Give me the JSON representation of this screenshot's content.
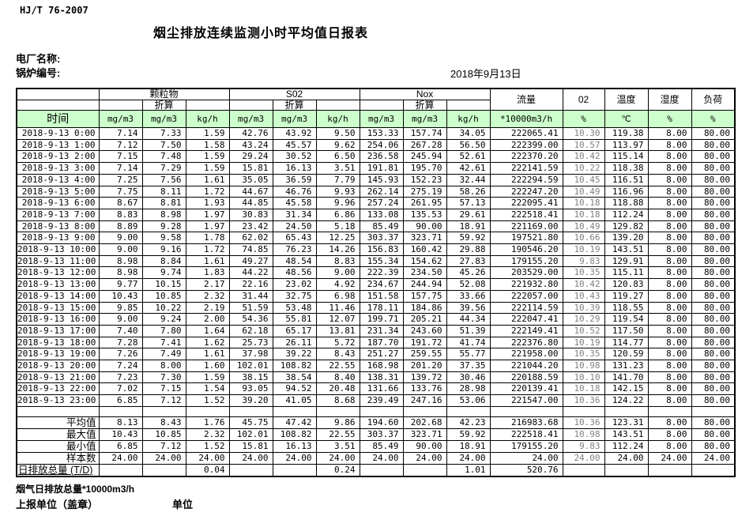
{
  "page": {
    "standard": "HJ/T  76-2007",
    "title": "烟尘排放连续监测小时平均值日报表",
    "plant_label": "电厂名称:",
    "boiler_label": "锅炉编号:",
    "date": "2018年9月13日"
  },
  "table": {
    "time_header": "时间",
    "converted_label": "折算",
    "groups": [
      "颗粒物",
      "S02",
      "Nox"
    ],
    "singles": [
      "流量",
      "02",
      "温度",
      "湿度",
      "负荷"
    ],
    "units": [
      "mg/m3",
      "mg/m3",
      "kg/h",
      "mg/m3",
      "mg/m3",
      "kg/h",
      "mg/m3",
      "mg/m3",
      "kg/h",
      "*10000m3/h",
      "%",
      "℃",
      "%",
      "%"
    ],
    "rows": [
      {
        "time": "2018-9-13 0:00",
        "values": [
          "7.14",
          "7.33",
          "1.59",
          "42.76",
          "43.92",
          "9.50",
          "153.33",
          "157.74",
          "34.05",
          "222065.41",
          "10.30",
          "119.38",
          "8.00",
          "80.00"
        ]
      },
      {
        "time": "2018-9-13 1:00",
        "values": [
          "7.12",
          "7.50",
          "1.58",
          "43.24",
          "45.57",
          "9.62",
          "254.06",
          "267.28",
          "56.50",
          "222399.00",
          "10.57",
          "113.97",
          "8.00",
          "80.00"
        ]
      },
      {
        "time": "2018-9-13 2:00",
        "values": [
          "7.15",
          "7.48",
          "1.59",
          "29.24",
          "30.52",
          "6.50",
          "236.58",
          "245.94",
          "52.61",
          "222370.20",
          "10.42",
          "115.14",
          "8.00",
          "80.00"
        ]
      },
      {
        "time": "2018-9-13 3:00",
        "values": [
          "7.14",
          "7.29",
          "1.59",
          "15.81",
          "16.13",
          "3.51",
          "191.81",
          "195.70",
          "42.61",
          "222141.59",
          "10.22",
          "118.38",
          "8.00",
          "80.00"
        ]
      },
      {
        "time": "2018-9-13 4:00",
        "values": [
          "7.25",
          "7.56",
          "1.61",
          "35.05",
          "36.59",
          "7.79",
          "145.93",
          "152.23",
          "32.44",
          "222294.59",
          "10.45",
          "116.51",
          "8.00",
          "80.00"
        ]
      },
      {
        "time": "2018-9-13 5:00",
        "values": [
          "7.75",
          "8.11",
          "1.72",
          "44.67",
          "46.76",
          "9.93",
          "262.14",
          "275.19",
          "58.26",
          "222247.20",
          "10.49",
          "116.96",
          "8.00",
          "80.00"
        ]
      },
      {
        "time": "2018-9-13 6:00",
        "values": [
          "8.67",
          "8.81",
          "1.93",
          "44.85",
          "45.58",
          "9.96",
          "257.24",
          "261.95",
          "57.13",
          "222095.41",
          "10.18",
          "118.88",
          "8.00",
          "80.00"
        ]
      },
      {
        "time": "2018-9-13 7:00",
        "values": [
          "8.83",
          "8.98",
          "1.97",
          "30.83",
          "31.34",
          "6.86",
          "133.08",
          "135.53",
          "29.61",
          "222518.41",
          "10.18",
          "112.24",
          "8.00",
          "80.00"
        ]
      },
      {
        "time": "2018-9-13 8:00",
        "values": [
          "8.89",
          "9.28",
          "1.97",
          "23.42",
          "24.50",
          "5.18",
          "85.49",
          "90.00",
          "18.91",
          "221169.00",
          "10.49",
          "129.82",
          "8.00",
          "80.00"
        ]
      },
      {
        "time": "2018-9-13 9:00",
        "values": [
          "9.00",
          "9.58",
          "1.78",
          "62.02",
          "65.43",
          "12.25",
          "303.37",
          "323.71",
          "59.92",
          "197521.80",
          "10.66",
          "139.20",
          "8.00",
          "80.00"
        ]
      },
      {
        "time": "2018-9-13 10:00",
        "values": [
          "9.00",
          "9.16",
          "1.72",
          "74.85",
          "76.23",
          "14.26",
          "156.83",
          "160.42",
          "29.88",
          "190546.20",
          "10.19",
          "143.51",
          "8.00",
          "80.00"
        ]
      },
      {
        "time": "2018-9-13 11:00",
        "values": [
          "8.98",
          "8.84",
          "1.61",
          "49.27",
          "48.54",
          "8.83",
          "155.34",
          "154.62",
          "27.83",
          "179155.20",
          "9.83",
          "129.91",
          "8.00",
          "80.00"
        ]
      },
      {
        "time": "2018-9-13 12:00",
        "values": [
          "8.98",
          "9.74",
          "1.83",
          "44.22",
          "48.56",
          "9.00",
          "222.39",
          "234.50",
          "45.26",
          "203529.00",
          "10.35",
          "115.11",
          "8.00",
          "80.00"
        ]
      },
      {
        "time": "2018-9-13 13:00",
        "values": [
          "9.77",
          "10.15",
          "2.17",
          "22.16",
          "23.02",
          "4.92",
          "234.67",
          "244.94",
          "52.08",
          "221932.80",
          "10.42",
          "120.83",
          "8.00",
          "80.00"
        ]
      },
      {
        "time": "2018-9-13 14:00",
        "values": [
          "10.43",
          "10.85",
          "2.32",
          "31.44",
          "32.75",
          "6.98",
          "151.58",
          "157.75",
          "33.66",
          "222057.00",
          "10.43",
          "119.27",
          "8.00",
          "80.00"
        ]
      },
      {
        "time": "2018-9-13 15:00",
        "values": [
          "9.85",
          "10.22",
          "2.19",
          "51.59",
          "53.48",
          "11.46",
          "178.11",
          "184.86",
          "39.56",
          "222114.59",
          "10.39",
          "118.55",
          "8.00",
          "80.00"
        ]
      },
      {
        "time": "2018-9-13 16:00",
        "values": [
          "9.00",
          "9.24",
          "2.00",
          "54.36",
          "55.81",
          "12.07",
          "199.71",
          "205.21",
          "44.34",
          "222047.41",
          "10.29",
          "119.54",
          "8.00",
          "80.00"
        ]
      },
      {
        "time": "2018-9-13 17:00",
        "values": [
          "7.40",
          "7.80",
          "1.64",
          "62.18",
          "65.17",
          "13.81",
          "231.34",
          "243.60",
          "51.39",
          "222149.41",
          "10.52",
          "117.50",
          "8.00",
          "80.00"
        ]
      },
      {
        "time": "2018-9-13 18:00",
        "values": [
          "7.28",
          "7.41",
          "1.62",
          "25.73",
          "26.11",
          "5.72",
          "187.70",
          "191.72",
          "41.74",
          "222376.80",
          "10.19",
          "114.77",
          "8.00",
          "80.00"
        ]
      },
      {
        "time": "2018-9-13 19:00",
        "values": [
          "7.26",
          "7.49",
          "1.61",
          "37.98",
          "39.22",
          "8.43",
          "251.27",
          "259.55",
          "55.77",
          "221958.00",
          "10.35",
          "120.59",
          "8.00",
          "80.00"
        ]
      },
      {
        "time": "2018-9-13 20:00",
        "values": [
          "7.24",
          "8.00",
          "1.60",
          "102.01",
          "108.82",
          "22.55",
          "168.98",
          "201.20",
          "37.35",
          "221044.20",
          "10.98",
          "131.23",
          "8.00",
          "80.00"
        ]
      },
      {
        "time": "2018-9-13 21:00",
        "values": [
          "7.23",
          "7.30",
          "1.59",
          "38.15",
          "38.54",
          "8.40",
          "138.31",
          "139.72",
          "30.46",
          "220188.59",
          "10.10",
          "141.70",
          "8.00",
          "80.00"
        ]
      },
      {
        "time": "2018-9-13 22:00",
        "values": [
          "7.02",
          "7.15",
          "1.54",
          "93.05",
          "94.52",
          "20.48",
          "131.66",
          "133.76",
          "28.98",
          "220139.41",
          "10.18",
          "142.15",
          "8.00",
          "80.00"
        ]
      },
      {
        "time": "2018-9-13 23:00",
        "values": [
          "6.85",
          "7.12",
          "1.52",
          "39.20",
          "41.05",
          "8.68",
          "239.49",
          "247.16",
          "53.06",
          "221547.00",
          "10.36",
          "124.22",
          "8.00",
          "80.00"
        ]
      }
    ],
    "summary": [
      {
        "label": "平均值",
        "values": [
          "8.13",
          "8.43",
          "1.76",
          "45.75",
          "47.42",
          "9.86",
          "194.60",
          "202.68",
          "42.23",
          "216983.68",
          "10.36",
          "123.31",
          "8.00",
          "80.00"
        ]
      },
      {
        "label": "最大值",
        "values": [
          "10.43",
          "10.85",
          "2.32",
          "102.01",
          "108.82",
          "22.55",
          "303.37",
          "323.71",
          "59.92",
          "222518.41",
          "10.98",
          "143.51",
          "8.00",
          "80.00"
        ]
      },
      {
        "label": "最小值",
        "values": [
          "6.85",
          "7.12",
          "1.52",
          "15.81",
          "16.13",
          "3.51",
          "85.49",
          "90.00",
          "18.91",
          "179155.20",
          "9.83",
          "112.24",
          "8.00",
          "80.00"
        ]
      },
      {
        "label": "样本数",
        "values": [
          "24.00",
          "24.00",
          "24.00",
          "24.00",
          "24.00",
          "24.00",
          "24.00",
          "24.00",
          "24.00",
          "24.00",
          "24.00",
          "24.00",
          "24.00",
          "24.00"
        ]
      },
      {
        "label": "日排放总量 (T/D)",
        "values": [
          "",
          "",
          "0.04",
          "",
          "",
          "0.24",
          "",
          "",
          "1.01",
          "520.76",
          "",
          "",
          "",
          ""
        ]
      }
    ]
  },
  "footer": {
    "flue_total_label": "烟气日排放总量*10000m3/h",
    "report_unit_label": "上报单位（盖章）",
    "unit_label": "单位"
  },
  "colors": {
    "header_green": "#ccffcc",
    "o2_text": "#808080",
    "border": "#000000"
  }
}
